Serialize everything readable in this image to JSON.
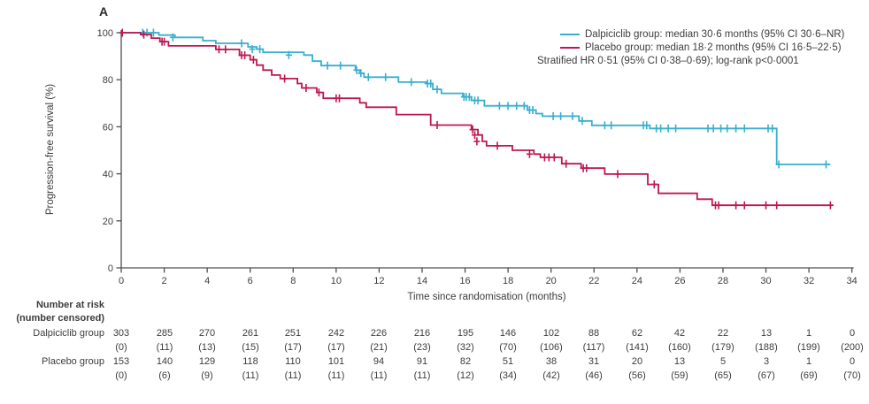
{
  "panel_label": "A",
  "colors": {
    "dalpiciclib": "#38afce",
    "placebo": "#bd1752",
    "axis": "#4f4f4f",
    "text": "#3c3c3c"
  },
  "legend": {
    "items": [
      {
        "label": "Dalpiciclib group: median 30·6 months (95% CI 30·6–NR)",
        "series": "dalpiciclib"
      },
      {
        "label": "Placebo group: median 18·2 months (95% CI 16·5–22·5)",
        "series": "placebo"
      }
    ],
    "note": "Stratified HR 0·51 (95% CI 0·38–0·69); log-rank p<0·0001"
  },
  "chart_data": {
    "type": "line",
    "subtype": "kaplan-meier-step",
    "xlabel": "Time since randomisation (months)",
    "ylabel": "Progression-free survival (%)",
    "xlim": [
      0,
      34
    ],
    "ylim": [
      0,
      100
    ],
    "xticks": [
      0,
      2,
      4,
      6,
      8,
      10,
      12,
      14,
      16,
      18,
      20,
      22,
      24,
      26,
      28,
      30,
      32,
      34
    ],
    "yticks": [
      0,
      20,
      40,
      60,
      80,
      100
    ],
    "grid": false,
    "legend_position": "top-right",
    "series": [
      {
        "name": "Dalpiciclib group",
        "color": "#38afce",
        "median_months": "30·6",
        "end_time": 33.0,
        "steps": [
          [
            0,
            100
          ],
          [
            1.75,
            99
          ],
          [
            2.5,
            98
          ],
          [
            3.8,
            96.6
          ],
          [
            4.4,
            95.5
          ],
          [
            5.9,
            94
          ],
          [
            6.3,
            93
          ],
          [
            6.6,
            91.7
          ],
          [
            8.5,
            90.5
          ],
          [
            8.9,
            87.9
          ],
          [
            9.3,
            86
          ],
          [
            10.9,
            84.1
          ],
          [
            11.1,
            82.8
          ],
          [
            11.3,
            81.1
          ],
          [
            12.9,
            79
          ],
          [
            14.2,
            78.4
          ],
          [
            14.5,
            75.9
          ],
          [
            14.9,
            74.2
          ],
          [
            15.9,
            72.7
          ],
          [
            16.3,
            71.2
          ],
          [
            16.9,
            68.9
          ],
          [
            18.9,
            67.1
          ],
          [
            19.3,
            65.6
          ],
          [
            19.6,
            64.5
          ],
          [
            21.3,
            62.5
          ],
          [
            21.9,
            60.6
          ],
          [
            24.6,
            59.3
          ],
          [
            30.5,
            44
          ]
        ],
        "censors": [
          [
            1.0,
            100
          ],
          [
            1.2,
            100
          ],
          [
            1.5,
            100
          ],
          [
            2.4,
            98
          ],
          [
            5.6,
            95.5
          ],
          [
            6.1,
            93
          ],
          [
            6.45,
            93
          ],
          [
            7.8,
            90.5
          ],
          [
            9.6,
            86
          ],
          [
            10.2,
            86
          ],
          [
            10.95,
            84.1
          ],
          [
            11.15,
            82.8
          ],
          [
            11.5,
            81.1
          ],
          [
            12.3,
            81.1
          ],
          [
            13.5,
            79
          ],
          [
            14.25,
            78.4
          ],
          [
            14.4,
            78.4
          ],
          [
            14.7,
            75.9
          ],
          [
            15.95,
            72.7
          ],
          [
            16.05,
            72.7
          ],
          [
            16.2,
            72.7
          ],
          [
            16.45,
            71.2
          ],
          [
            16.6,
            71.2
          ],
          [
            17.6,
            68.9
          ],
          [
            18.0,
            68.9
          ],
          [
            18.4,
            68.9
          ],
          [
            18.75,
            68.9
          ],
          [
            19.0,
            67.1
          ],
          [
            19.15,
            67.1
          ],
          [
            20.1,
            64.5
          ],
          [
            20.45,
            64.5
          ],
          [
            21.0,
            64.5
          ],
          [
            21.45,
            62.5
          ],
          [
            22.5,
            60.6
          ],
          [
            22.8,
            60.6
          ],
          [
            24.3,
            60.6
          ],
          [
            24.45,
            60.6
          ],
          [
            24.9,
            59.3
          ],
          [
            25.1,
            59.3
          ],
          [
            25.45,
            59.3
          ],
          [
            25.8,
            59.3
          ],
          [
            27.3,
            59.3
          ],
          [
            27.55,
            59.3
          ],
          [
            27.9,
            59.3
          ],
          [
            28.2,
            59.3
          ],
          [
            28.6,
            59.3
          ],
          [
            29.0,
            59.3
          ],
          [
            30.1,
            59.3
          ],
          [
            30.3,
            59.3
          ],
          [
            30.6,
            44
          ],
          [
            32.8,
            44
          ]
        ]
      },
      {
        "name": "Placebo group",
        "color": "#bd1752",
        "median_months": "18·2",
        "end_time": 33.1,
        "steps": [
          [
            0,
            100
          ],
          [
            0.9,
            99.2
          ],
          [
            1.4,
            97.7
          ],
          [
            1.8,
            96.2
          ],
          [
            2.2,
            94.4
          ],
          [
            4.4,
            92.9
          ],
          [
            5.5,
            90.4
          ],
          [
            6.0,
            88.5
          ],
          [
            6.3,
            86.2
          ],
          [
            6.6,
            84.1
          ],
          [
            7.0,
            82
          ],
          [
            7.4,
            80.5
          ],
          [
            8.2,
            78.4
          ],
          [
            8.4,
            76.5
          ],
          [
            9.1,
            74.6
          ],
          [
            9.4,
            72.1
          ],
          [
            11.1,
            70.2
          ],
          [
            11.4,
            68.3
          ],
          [
            12.8,
            65.2
          ],
          [
            14.4,
            60.7
          ],
          [
            16.3,
            58.8
          ],
          [
            16.6,
            56.5
          ],
          [
            16.8,
            53.8
          ],
          [
            17.0,
            51.9
          ],
          [
            18.2,
            50
          ],
          [
            19.2,
            48.4
          ],
          [
            19.5,
            47
          ],
          [
            20.5,
            44.3
          ],
          [
            21.4,
            42.4
          ],
          [
            22.5,
            39.9
          ],
          [
            24.5,
            35.5
          ],
          [
            25.0,
            31.7
          ],
          [
            26.8,
            29.2
          ],
          [
            27.5,
            26.6
          ]
        ],
        "censors": [
          [
            0.05,
            100
          ],
          [
            1.05,
            99.2
          ],
          [
            1.9,
            96.2
          ],
          [
            2.0,
            96.2
          ],
          [
            4.55,
            92.9
          ],
          [
            4.85,
            92.9
          ],
          [
            5.6,
            90.4
          ],
          [
            5.75,
            90.4
          ],
          [
            6.15,
            88.5
          ],
          [
            7.6,
            80.5
          ],
          [
            8.6,
            76.5
          ],
          [
            9.2,
            74.6
          ],
          [
            10.0,
            72.1
          ],
          [
            10.15,
            72.1
          ],
          [
            14.7,
            60.7
          ],
          [
            16.35,
            58.8
          ],
          [
            16.45,
            56.5
          ],
          [
            16.55,
            53.8
          ],
          [
            17.5,
            51.9
          ],
          [
            19.0,
            48.4
          ],
          [
            19.7,
            47
          ],
          [
            19.9,
            47
          ],
          [
            20.15,
            47
          ],
          [
            20.7,
            44.3
          ],
          [
            21.5,
            42.4
          ],
          [
            21.65,
            42.4
          ],
          [
            23.1,
            39.9
          ],
          [
            24.8,
            35.5
          ],
          [
            27.65,
            26.6
          ],
          [
            27.8,
            26.6
          ],
          [
            28.6,
            26.6
          ],
          [
            29.0,
            26.6
          ],
          [
            30.0,
            26.6
          ],
          [
            30.5,
            26.6
          ],
          [
            33.0,
            26.6
          ]
        ]
      }
    ]
  },
  "risk_table": {
    "title": "Number at risk",
    "subtitle": "(number censored)",
    "time_points": [
      0,
      2,
      4,
      6,
      8,
      10,
      12,
      14,
      16,
      18,
      20,
      22,
      24,
      26,
      28,
      30,
      32,
      34
    ],
    "rows": [
      {
        "label": "Dalpiciclib group",
        "at_risk": [
          303,
          285,
          270,
          261,
          251,
          242,
          226,
          216,
          195,
          146,
          102,
          88,
          62,
          42,
          22,
          13,
          1,
          0
        ],
        "censored": [
          0,
          11,
          13,
          15,
          17,
          17,
          21,
          23,
          32,
          70,
          106,
          117,
          141,
          160,
          179,
          188,
          199,
          200
        ]
      },
      {
        "label": "Placebo group",
        "at_risk": [
          153,
          140,
          129,
          118,
          110,
          101,
          94,
          91,
          82,
          51,
          38,
          31,
          20,
          13,
          5,
          3,
          1,
          0
        ],
        "censored": [
          0,
          6,
          9,
          11,
          11,
          11,
          11,
          11,
          12,
          34,
          42,
          46,
          56,
          59,
          65,
          67,
          69,
          70
        ]
      }
    ]
  }
}
